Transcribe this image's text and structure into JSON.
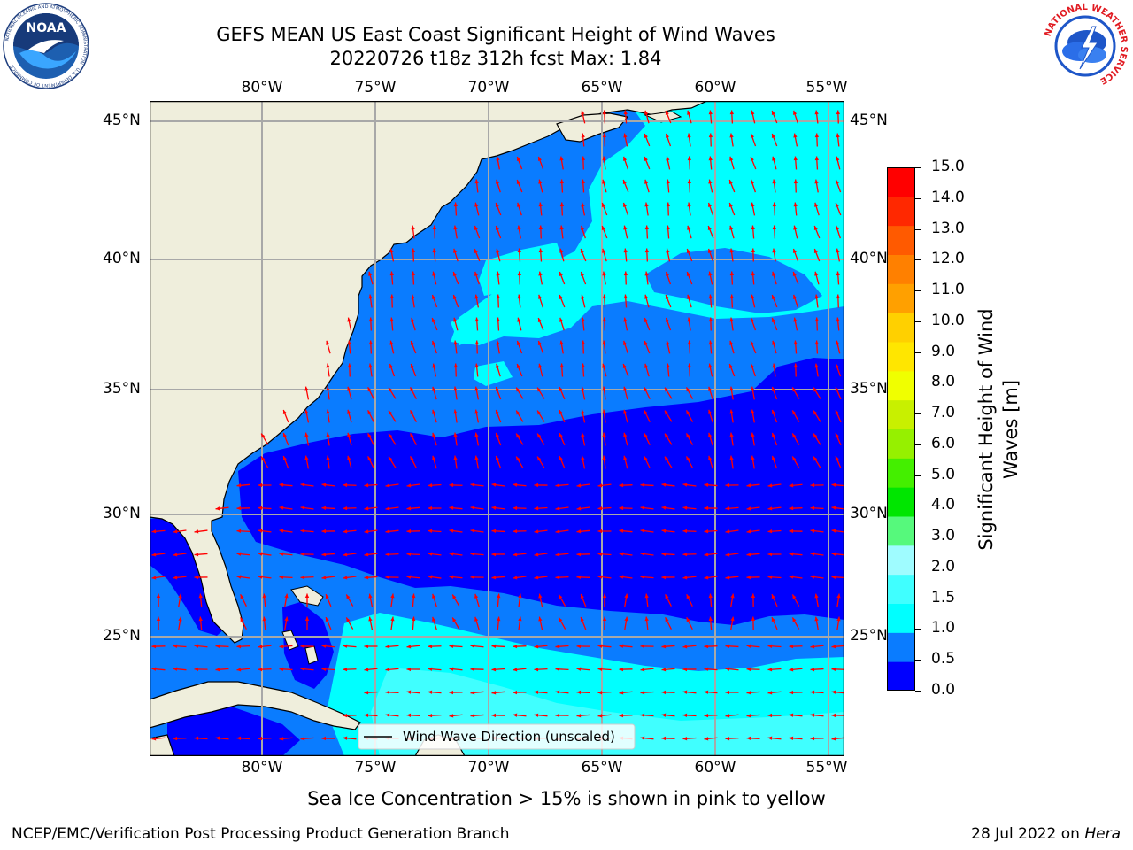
{
  "title": {
    "line1": "GEFS MEAN US East Coast Significant Height of Wind Waves",
    "line2": "20220726 t18z 312h fcst   Max: 1.84"
  },
  "logos": {
    "left": "NOAA",
    "left_ring": "NATIONAL OCEANIC AND ATMOSPHERIC ADMINISTRATION · U.S. DEPARTMENT OF COMMERCE",
    "right_ring": "NATIONAL WEATHER SERVICE"
  },
  "map": {
    "lon_labels": [
      "80°W",
      "75°W",
      "70°W",
      "65°W",
      "60°W",
      "55°W"
    ],
    "lat_labels": [
      "45°N",
      "40°N",
      "35°N",
      "30°N",
      "25°N"
    ],
    "legend_label": "Wind Wave Direction (unscaled)",
    "arrow_color": "#ff0000",
    "land_color": "#efeedc"
  },
  "colorbar": {
    "title": "Significant Height of Wind Waves [m]",
    "title_line1": "Significant Height of Wind",
    "title_line2": "Waves [m]",
    "ticks": [
      "15.0",
      "14.0",
      "13.0",
      "12.0",
      "11.0",
      "10.0",
      "9.0",
      "8.0",
      "7.0",
      "6.0",
      "5.0",
      "4.0",
      "3.0",
      "2.0",
      "1.5",
      "1.0",
      "0.5",
      "0.0"
    ],
    "colors_bottom_to_top": [
      "#0000ff",
      "#0a7cff",
      "#00ffff",
      "#40ffff",
      "#9ffcff",
      "#56f97c",
      "#00e600",
      "#44ef00",
      "#96f000",
      "#c8f000",
      "#f0ff00",
      "#ffe600",
      "#ffd000",
      "#ffa000",
      "#ff8000",
      "#ff5a00",
      "#ff2800",
      "#ff0000"
    ]
  },
  "notes": {
    "sea_ice": "Sea Ice Concentration > 15% is shown in pink to yellow",
    "credit_left": "NCEP/EMC/Verification Post Processing Product Generation Branch",
    "credit_date": "28 Jul 2022 on ",
    "credit_machine": "Hera"
  }
}
